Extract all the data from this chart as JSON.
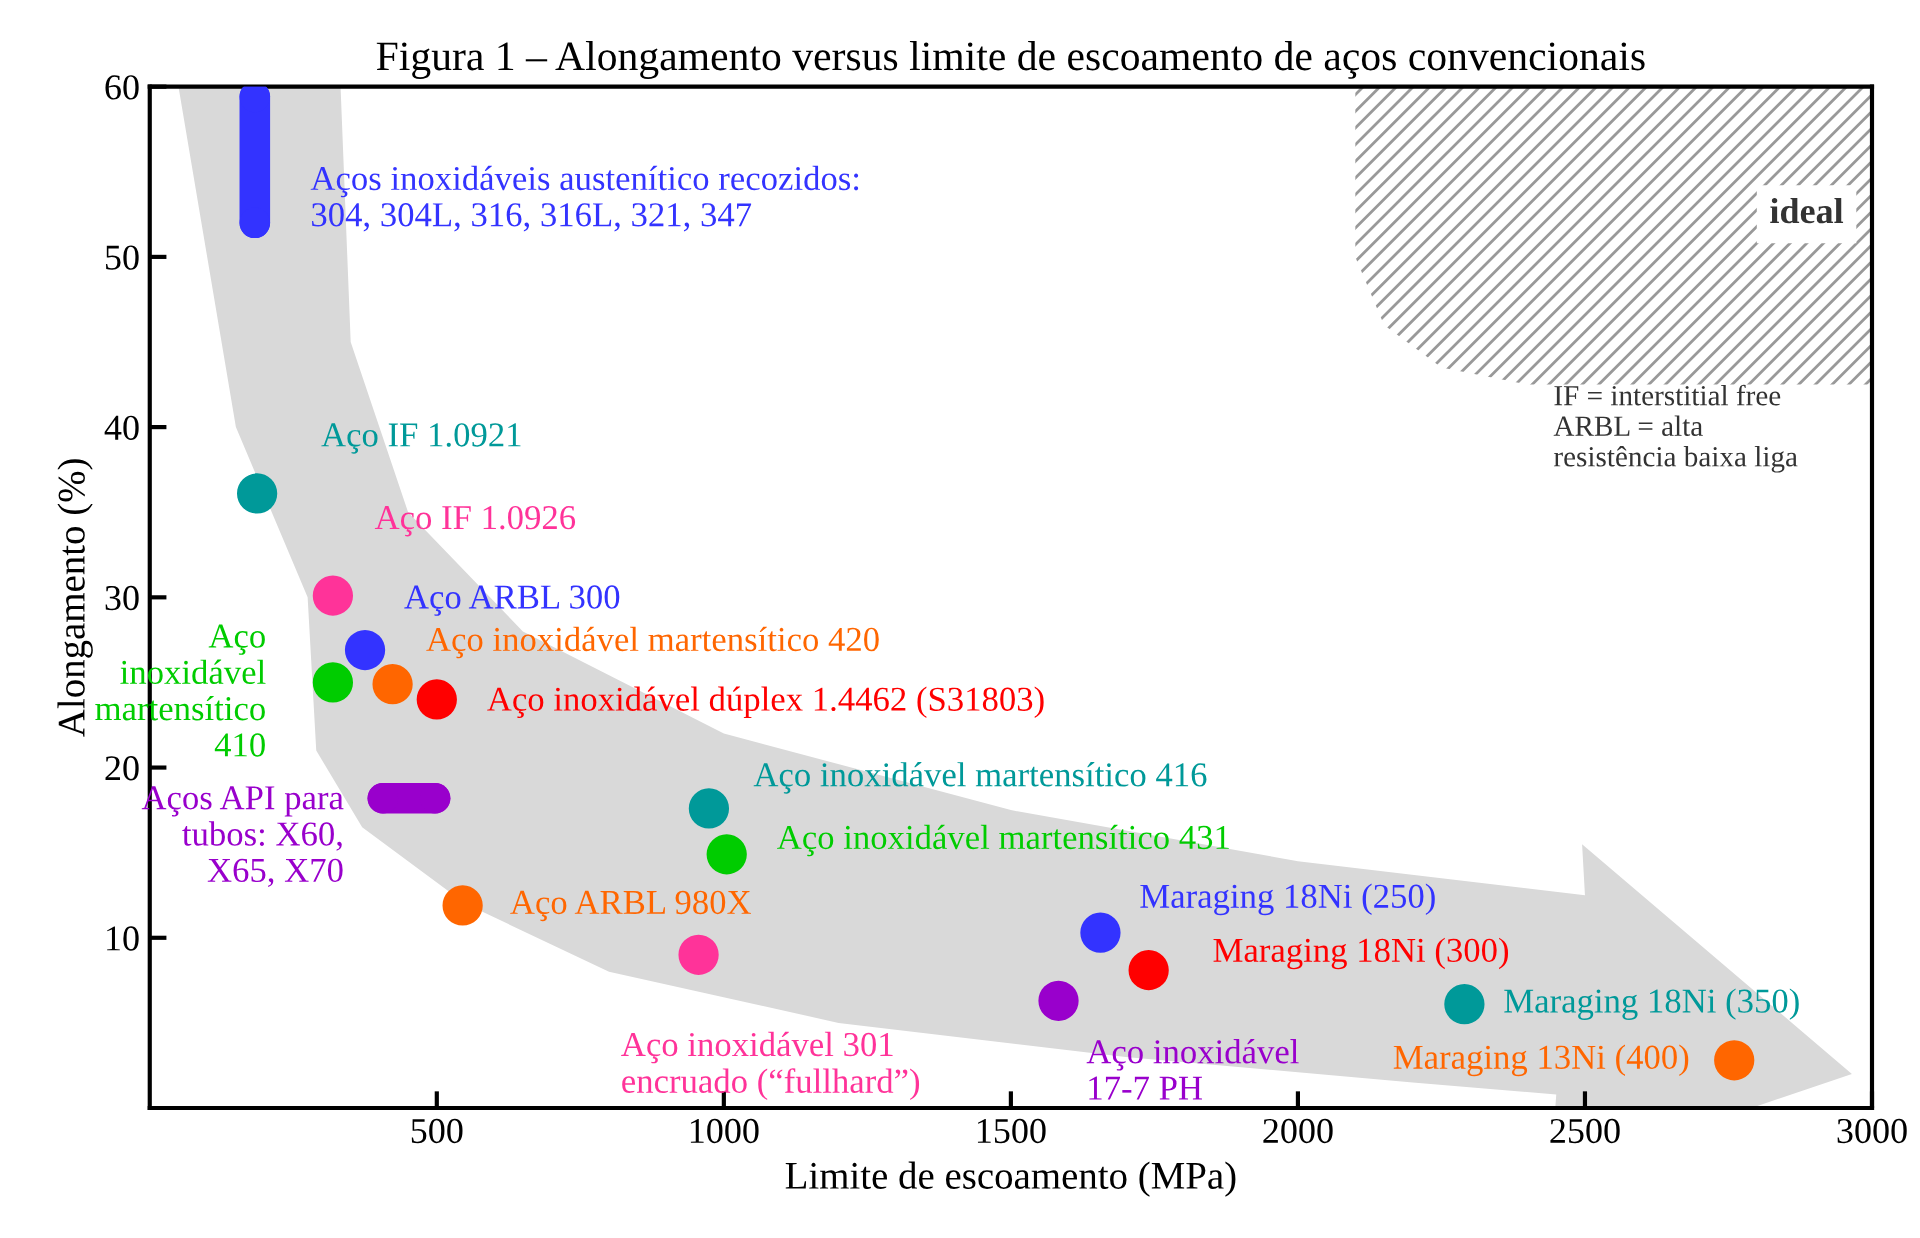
{
  "chart_data": {
    "type": "scatter",
    "title": "Figura 1 – Alongamento versus limite de escoamento de aços convencionais",
    "xlabel": "Limite de escoamento (MPa)",
    "ylabel": "Alongamento (%)",
    "xlim": [
      0,
      3000
    ],
    "xticks": [
      500,
      1000,
      1500,
      2000,
      2500,
      3000
    ],
    "ylim": [
      0,
      60
    ],
    "yticks": [
      10,
      20,
      30,
      40,
      50,
      60
    ],
    "grid": false,
    "legend": false,
    "marker": "circle",
    "annotations": [
      "ideal",
      "IF = interstitial free\nARBL = alta\nresistência baixa liga"
    ],
    "series": [
      {
        "type": "line",
        "name": "Aços inoxidáveis austenítico recozidos:\n304, 304L, 316, 316L, 321, 347",
        "color": "#3333ff",
        "x": [
          183,
          183
        ],
        "values": [
          59.4,
          52.0
        ]
      },
      {
        "name": "Aço IF 1.0921",
        "color": "#009999",
        "x": [
          187
        ],
        "values": [
          36.1
        ]
      },
      {
        "name": "Aço IF 1.0926",
        "color": "#ff3399",
        "x": [
          319
        ],
        "values": [
          30.1
        ]
      },
      {
        "name": "Aço ARBL 300",
        "color": "#3333ff",
        "x": [
          375
        ],
        "values": [
          26.9
        ]
      },
      {
        "name": "Aço\ninoxidável\nmartensítico\n410",
        "color": "#00cc00",
        "x": [
          319
        ],
        "values": [
          25.0
        ]
      },
      {
        "name": "Aço inoxidável martensítico 420",
        "color": "#ff6600",
        "x": [
          423
        ],
        "values": [
          24.9
        ]
      },
      {
        "name": "Aço inoxidável dúplex 1.4462 (S31803)",
        "color": "#ff0000",
        "x": [
          500
        ],
        "values": [
          24.0
        ]
      },
      {
        "type": "line",
        "name": "Aços API para\ntubos: X60,\nX65, X70",
        "color": "#9900cc",
        "x": [
          406,
          497
        ],
        "values": [
          18.2,
          18.2
        ]
      },
      {
        "name": "Aço ARBL 980X",
        "color": "#ff6600",
        "x": [
          545
        ],
        "values": [
          11.9
        ]
      },
      {
        "name": "Aço inoxidável martensítico 416",
        "color": "#009999",
        "x": [
          974
        ],
        "values": [
          17.6
        ]
      },
      {
        "name": "Aço inoxidável martensítico 431",
        "color": "#00cc00",
        "x": [
          1005
        ],
        "values": [
          14.9
        ]
      },
      {
        "name": "Aço inoxidável 301\nencruado (“fullhard”)",
        "color": "#ff3399",
        "x": [
          956
        ],
        "values": [
          9.0
        ]
      },
      {
        "name": "Aço inoxidável\n17-7 PH",
        "color": "#9900cc",
        "x": [
          1583
        ],
        "values": [
          6.3
        ]
      },
      {
        "name": "Maraging 18Ni (250)",
        "color": "#3333ff",
        "x": [
          1656
        ],
        "values": [
          10.3
        ]
      },
      {
        "name": "Maraging 18Ni (300)",
        "color": "#ff0000",
        "x": [
          1740
        ],
        "values": [
          8.1
        ]
      },
      {
        "name": "Maraging 18Ni (350)",
        "color": "#009999",
        "x": [
          2290
        ],
        "values": [
          6.1
        ]
      },
      {
        "name": "Maraging 13Ni (400)",
        "color": "#ff6600",
        "x": [
          2760
        ],
        "values": [
          2.8
        ]
      }
    ]
  }
}
